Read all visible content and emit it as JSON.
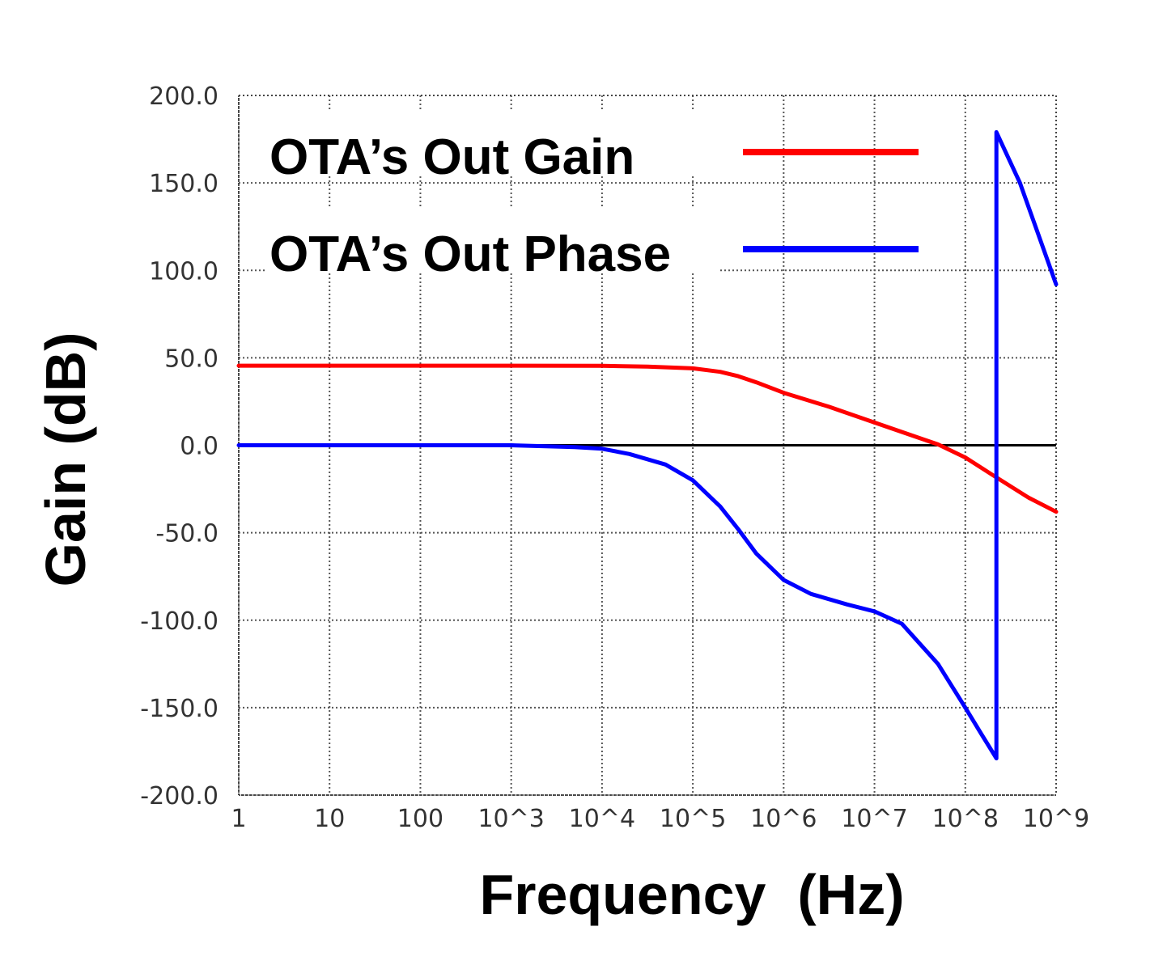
{
  "chart_data": {
    "type": "line",
    "xlabel": "Frequency  (Hz)",
    "ylabel": "Gain (dB)",
    "x_scale": "log",
    "xlim": [
      1,
      1000000000
    ],
    "ylim": [
      -200,
      200
    ],
    "grid": true,
    "legend_position": "top-left",
    "x_ticks": [
      {
        "value": 1,
        "label": "1"
      },
      {
        "value": 10,
        "label": "10"
      },
      {
        "value": 100,
        "label": "100"
      },
      {
        "value": 1000,
        "label": "10^3"
      },
      {
        "value": 10000,
        "label": "10^4"
      },
      {
        "value": 100000,
        "label": "10^5"
      },
      {
        "value": 1000000,
        "label": "10^6"
      },
      {
        "value": 10000000,
        "label": "10^7"
      },
      {
        "value": 100000000,
        "label": "10^8"
      },
      {
        "value": 1000000000,
        "label": "10^9"
      }
    ],
    "y_ticks": [
      {
        "value": 200,
        "label": "200.0"
      },
      {
        "value": 150,
        "label": "150.0"
      },
      {
        "value": 100,
        "label": "100.0"
      },
      {
        "value": 50,
        "label": "50.0"
      },
      {
        "value": 0,
        "label": "0.0"
      },
      {
        "value": -50,
        "label": "-50.0"
      },
      {
        "value": -100,
        "label": "-100.0"
      },
      {
        "value": -150,
        "label": "-150.0"
      },
      {
        "value": -200,
        "label": "-200.0"
      }
    ],
    "zero_line": 0,
    "series": [
      {
        "name": "OTA’s Out Gain",
        "color": "#ff0000",
        "x": [
          1,
          10,
          100,
          1000,
          10000,
          31623,
          100000,
          200000,
          316228,
          501187,
          1000000,
          3162278,
          10000000,
          31622777,
          50000000,
          100000000,
          200000000,
          500000000,
          1000000000
        ],
        "y": [
          45.5,
          45.5,
          45.5,
          45.5,
          45.4,
          45.0,
          44.0,
          42.0,
          39.5,
          36.0,
          30.0,
          22.0,
          13.0,
          4.0,
          0.5,
          -7.0,
          -17.0,
          -30.0,
          -38.0
        ]
      },
      {
        "name": "OTA’s Out Phase",
        "color": "#0000ff",
        "x": [
          1,
          10,
          100,
          1000,
          5000,
          10000,
          20000,
          50000,
          100000,
          200000,
          316228,
          501187,
          1000000,
          2000000,
          5000000,
          10000000,
          20000000,
          50000000,
          100000000,
          150000000,
          220000000,
          220000001,
          400000000,
          1000000000
        ],
        "y": [
          0,
          0,
          0,
          0,
          -1,
          -2,
          -5,
          -11,
          -20,
          -35,
          -48,
          -62,
          -77,
          -85,
          -91,
          -95,
          -102,
          -125,
          -150,
          -165,
          -179,
          179,
          150,
          92
        ]
      }
    ]
  }
}
